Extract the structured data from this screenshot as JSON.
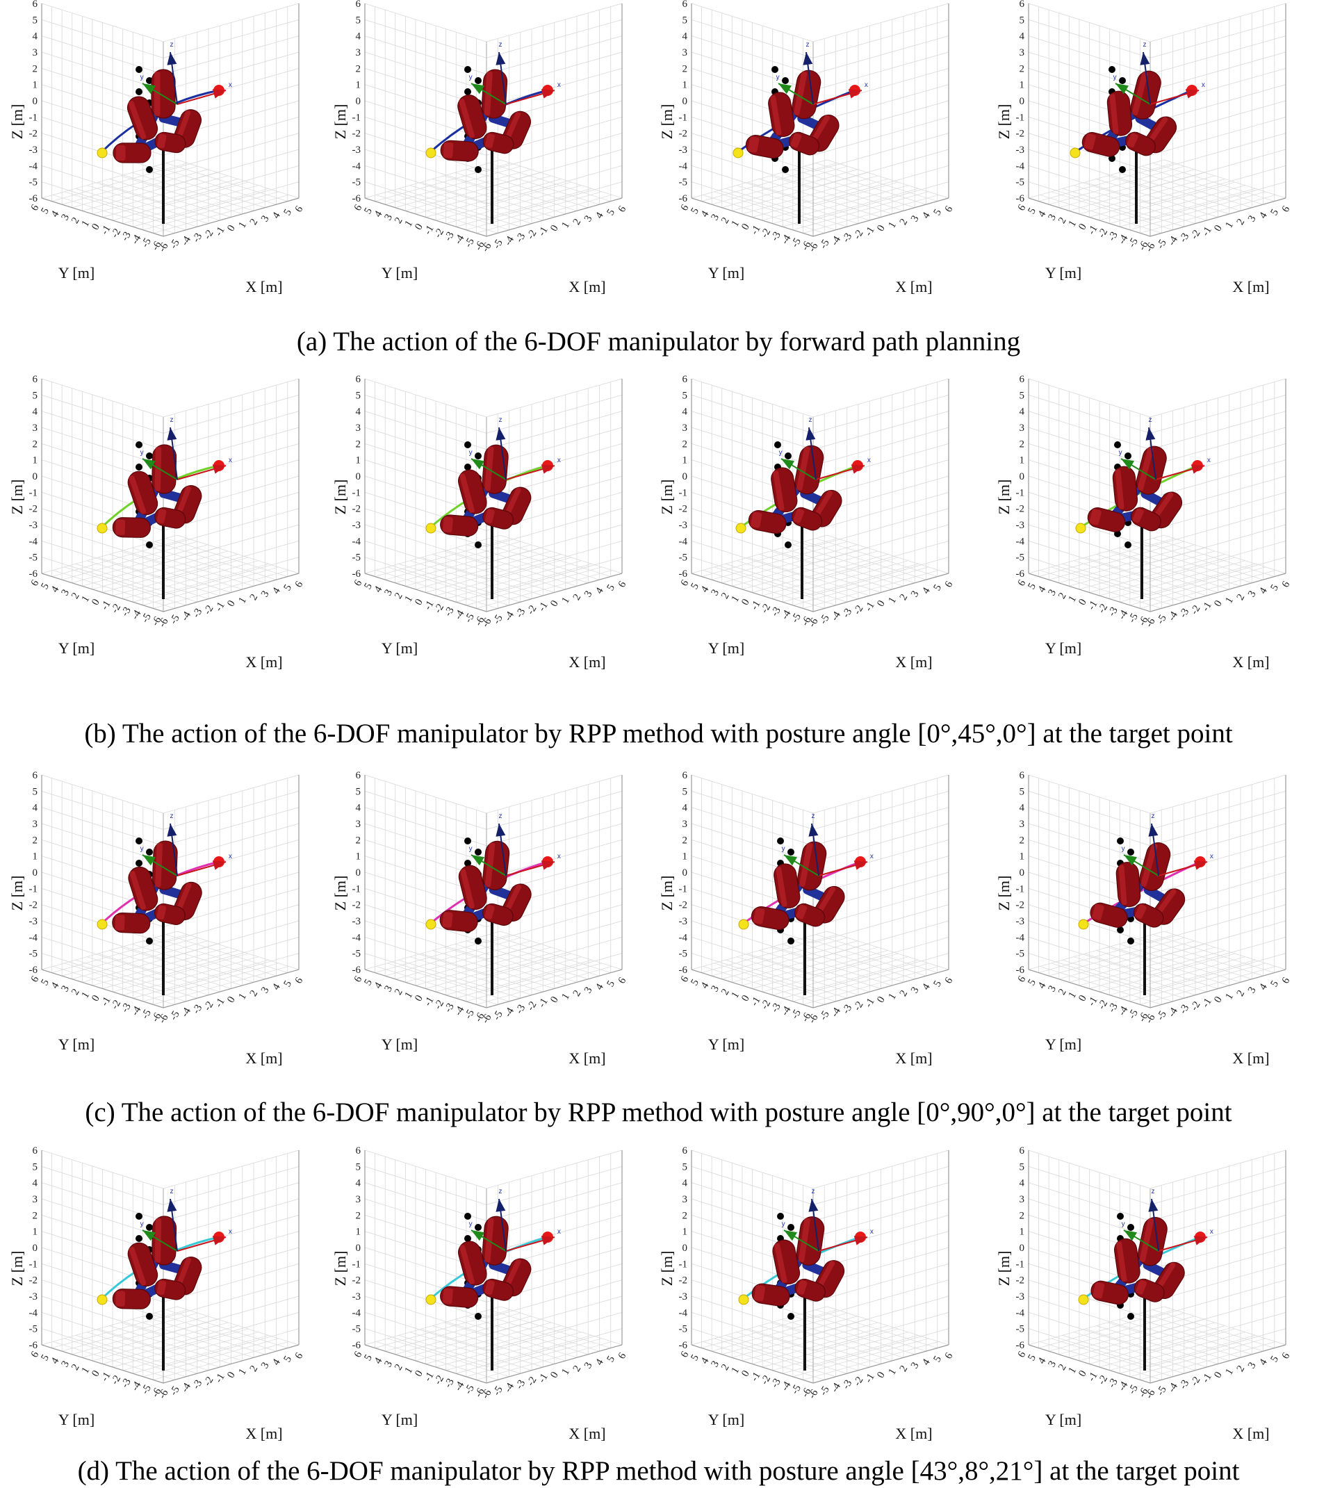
{
  "figure": {
    "rows": [
      {
        "caption": "(a) The action of the 6-DOF manipulator by forward path planning",
        "path_color": "#1a2fa0",
        "has_end_frame": true,
        "panels": [
          {
            "xlabel": "X [m]",
            "ylabel": "Y [m]",
            "zlabel": "Z [m]"
          },
          {
            "xlabel": "X [m]",
            "ylabel": "Y [m]",
            "zlabel": "Z [m]"
          },
          {
            "xlabel": "X [m]",
            "ylabel": "Y [m]",
            "zlabel": "Z [m]"
          },
          {
            "xlabel": "X [m]",
            "ylabel": "Y [m]",
            "zlabel": "Z [m]"
          }
        ]
      },
      {
        "caption": "(b) The action of the 6-DOF manipulator by RPP method with posture angle [0°,45°,0°] at the target point",
        "path_color": "#6fd12a",
        "has_end_frame": true,
        "panels": [
          {
            "xlabel": "X [m]",
            "ylabel": "Y [m]",
            "zlabel": "Z [m]"
          },
          {
            "xlabel": "X [m]",
            "ylabel": "Y [m]",
            "zlabel": "Z [m]"
          },
          {
            "xlabel": "X [m]",
            "ylabel": "Y [m]",
            "zlabel": "Z [m]"
          },
          {
            "xlabel": "X [m]",
            "ylabel": "Y [m]",
            "zlabel": "Z [m]"
          }
        ]
      },
      {
        "caption": "(c) The action of the 6-DOF manipulator by RPP method with posture angle [0°,90°,0°] at the target point",
        "path_color": "#e02fb0",
        "has_end_frame": true,
        "panels": [
          {
            "xlabel": "X [m]",
            "ylabel": "Y [m]",
            "zlabel": "Z [m]"
          },
          {
            "xlabel": "X [m]",
            "ylabel": "Y [m]",
            "zlabel": "Z [m]"
          },
          {
            "xlabel": "X [m]",
            "ylabel": "Y [m]",
            "zlabel": "Z [m]"
          },
          {
            "xlabel": "X [m]",
            "ylabel": "Y [m]",
            "zlabel": "Z [m]"
          }
        ]
      },
      {
        "caption": "(d) The action of the 6-DOF manipulator by RPP method with posture angle [43°,8°,21°] at the target point",
        "path_color": "#38c9d8",
        "has_end_frame": true,
        "panels": [
          {
            "xlabel": "X [m]",
            "ylabel": "Y [m]",
            "zlabel": "Z [m]"
          },
          {
            "xlabel": "X [m]",
            "ylabel": "Y [m]",
            "zlabel": "Z [m]"
          },
          {
            "xlabel": "X [m]",
            "ylabel": "Y [m]",
            "zlabel": "Z [m]"
          },
          {
            "xlabel": "X [m]",
            "ylabel": "Y [m]",
            "zlabel": "Z [m]"
          }
        ]
      }
    ],
    "z_ticks": [
      "6",
      "5",
      "4",
      "3",
      "2",
      "1",
      "0",
      "-1",
      "-2",
      "-3",
      "-4",
      "-5",
      "-6"
    ],
    "y_ticks": [
      "6",
      "5",
      "4",
      "3",
      "2",
      "1",
      "0",
      "-1",
      "-2",
      "-3",
      "-4",
      "-5",
      "-6"
    ],
    "x_ticks": [
      "-6",
      "-5",
      "-4",
      "-3",
      "-2",
      "-1",
      "0",
      "1",
      "2",
      "3",
      "4",
      "5",
      "6"
    ],
    "frame_labels": {
      "x": "x",
      "y": "y",
      "z": "z"
    },
    "colors": {
      "link": "#8b0e14",
      "link_light": "#c2242c",
      "joint": "#22309a",
      "base": "#111111",
      "obstacle": "#000000",
      "target": "#e81818",
      "start": "#f4e21a",
      "x_axis": "#c8161c",
      "y_axis": "#1f8a1a",
      "z_axis": "#14206a",
      "grid": "#d8d8d8",
      "box": "#9a9a9a"
    }
  }
}
